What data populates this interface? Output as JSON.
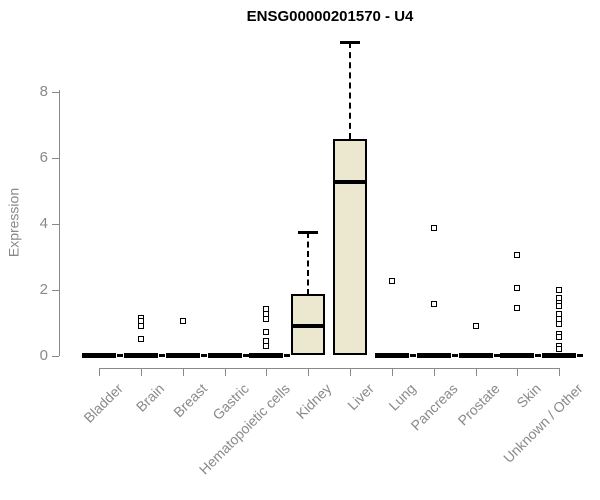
{
  "title": "ENSG00000201570 - U4",
  "chart_data": {
    "type": "boxplot",
    "title": "ENSG00000201570 - U4",
    "ylabel": "Expression",
    "xlabel": "",
    "yticks": [
      0,
      2,
      4,
      6,
      8
    ],
    "ylim": [
      0,
      9.6
    ],
    "grid": false,
    "legend": "none",
    "categories": [
      "Bladder",
      "Brain",
      "Breast",
      "Gastric",
      "Hematopoietic cells",
      "Kidney",
      "Liver",
      "Lung",
      "Pancreas",
      "Prostate",
      "Skin",
      "Unknown / Other"
    ],
    "boxes": [
      {
        "category": "Bladder",
        "whisker_low": 0,
        "q1": 0,
        "median": 0,
        "q3": 0,
        "whisker_high": 0,
        "outliers": []
      },
      {
        "category": "Brain",
        "whisker_low": 0,
        "q1": 0,
        "median": 0,
        "q3": 0,
        "whisker_high": 0,
        "outliers": [
          1.15,
          1.05,
          0.9,
          0.5
        ]
      },
      {
        "category": "Breast",
        "whisker_low": 0,
        "q1": 0,
        "median": 0,
        "q3": 0,
        "whisker_high": 0,
        "outliers": [
          1.05
        ]
      },
      {
        "category": "Gastric",
        "whisker_low": 0,
        "q1": 0,
        "median": 0,
        "q3": 0,
        "whisker_high": 0,
        "outliers": []
      },
      {
        "category": "Hematopoietic cells",
        "whisker_low": 0,
        "q1": 0,
        "median": 0,
        "q3": 0,
        "whisker_high": 0,
        "outliers": [
          1.4,
          1.25,
          1.1,
          0.7,
          0.45,
          0.3
        ]
      },
      {
        "category": "Kidney",
        "whisker_low": 0,
        "q1": 0,
        "median": 0.9,
        "q3": 1.85,
        "whisker_high": 3.75,
        "outliers": []
      },
      {
        "category": "Liver",
        "whisker_low": 0,
        "q1": 0,
        "median": 5.25,
        "q3": 6.55,
        "whisker_high": 9.5,
        "outliers": []
      },
      {
        "category": "Lung",
        "whisker_low": 0,
        "q1": 0,
        "median": 0,
        "q3": 0,
        "whisker_high": 0,
        "outliers": [
          2.25
        ]
      },
      {
        "category": "Pancreas",
        "whisker_low": 0,
        "q1": 0,
        "median": 0,
        "q3": 0,
        "whisker_high": 0,
        "outliers": [
          3.85,
          1.55
        ]
      },
      {
        "category": "Prostate",
        "whisker_low": 0,
        "q1": 0,
        "median": 0,
        "q3": 0,
        "whisker_high": 0,
        "outliers": [
          0.9
        ]
      },
      {
        "category": "Skin",
        "whisker_low": 0,
        "q1": 0,
        "median": 0,
        "q3": 0,
        "whisker_high": 0,
        "outliers": [
          3.05,
          2.05,
          1.45
        ]
      },
      {
        "category": "Unknown / Other",
        "whisker_low": 0,
        "q1": 0,
        "median": 0,
        "q3": 0,
        "whisker_high": 0,
        "outliers": [
          2.0,
          1.75,
          1.6,
          1.5,
          1.25,
          1.1,
          0.95,
          0.65,
          0.55,
          0.3,
          0.2
        ]
      }
    ],
    "colors": {
      "box_fill": "#ECE8CF",
      "box_stroke": "#000000",
      "axis": "#898989",
      "title": "#000000",
      "background": "#ffffff"
    }
  }
}
